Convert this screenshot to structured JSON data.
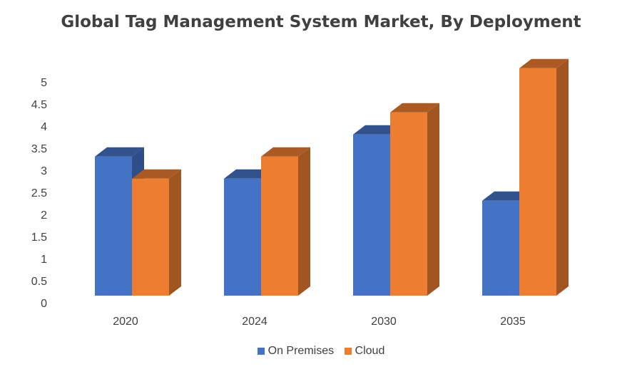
{
  "chart_data": {
    "type": "bar",
    "title": "Global Tag Management System Market, By Deployment",
    "categories": [
      "2020",
      "2024",
      "2030",
      "2035"
    ],
    "series": [
      {
        "name": "On Premises",
        "values": [
          3.15,
          2.65,
          3.65,
          2.15
        ],
        "color": "#4472C4"
      },
      {
        "name": "Cloud",
        "values": [
          2.65,
          3.15,
          4.15,
          5.15
        ],
        "color": "#ED7D31"
      }
    ],
    "y_ticks": [
      "0",
      "0.5",
      "1",
      "1.5",
      "2",
      "2.5",
      "3",
      "3.5",
      "4",
      "4.5",
      "5"
    ],
    "ylim": [
      0,
      5
    ],
    "grid": false,
    "legend_position": "bottom",
    "xlabel": "",
    "ylabel": ""
  }
}
